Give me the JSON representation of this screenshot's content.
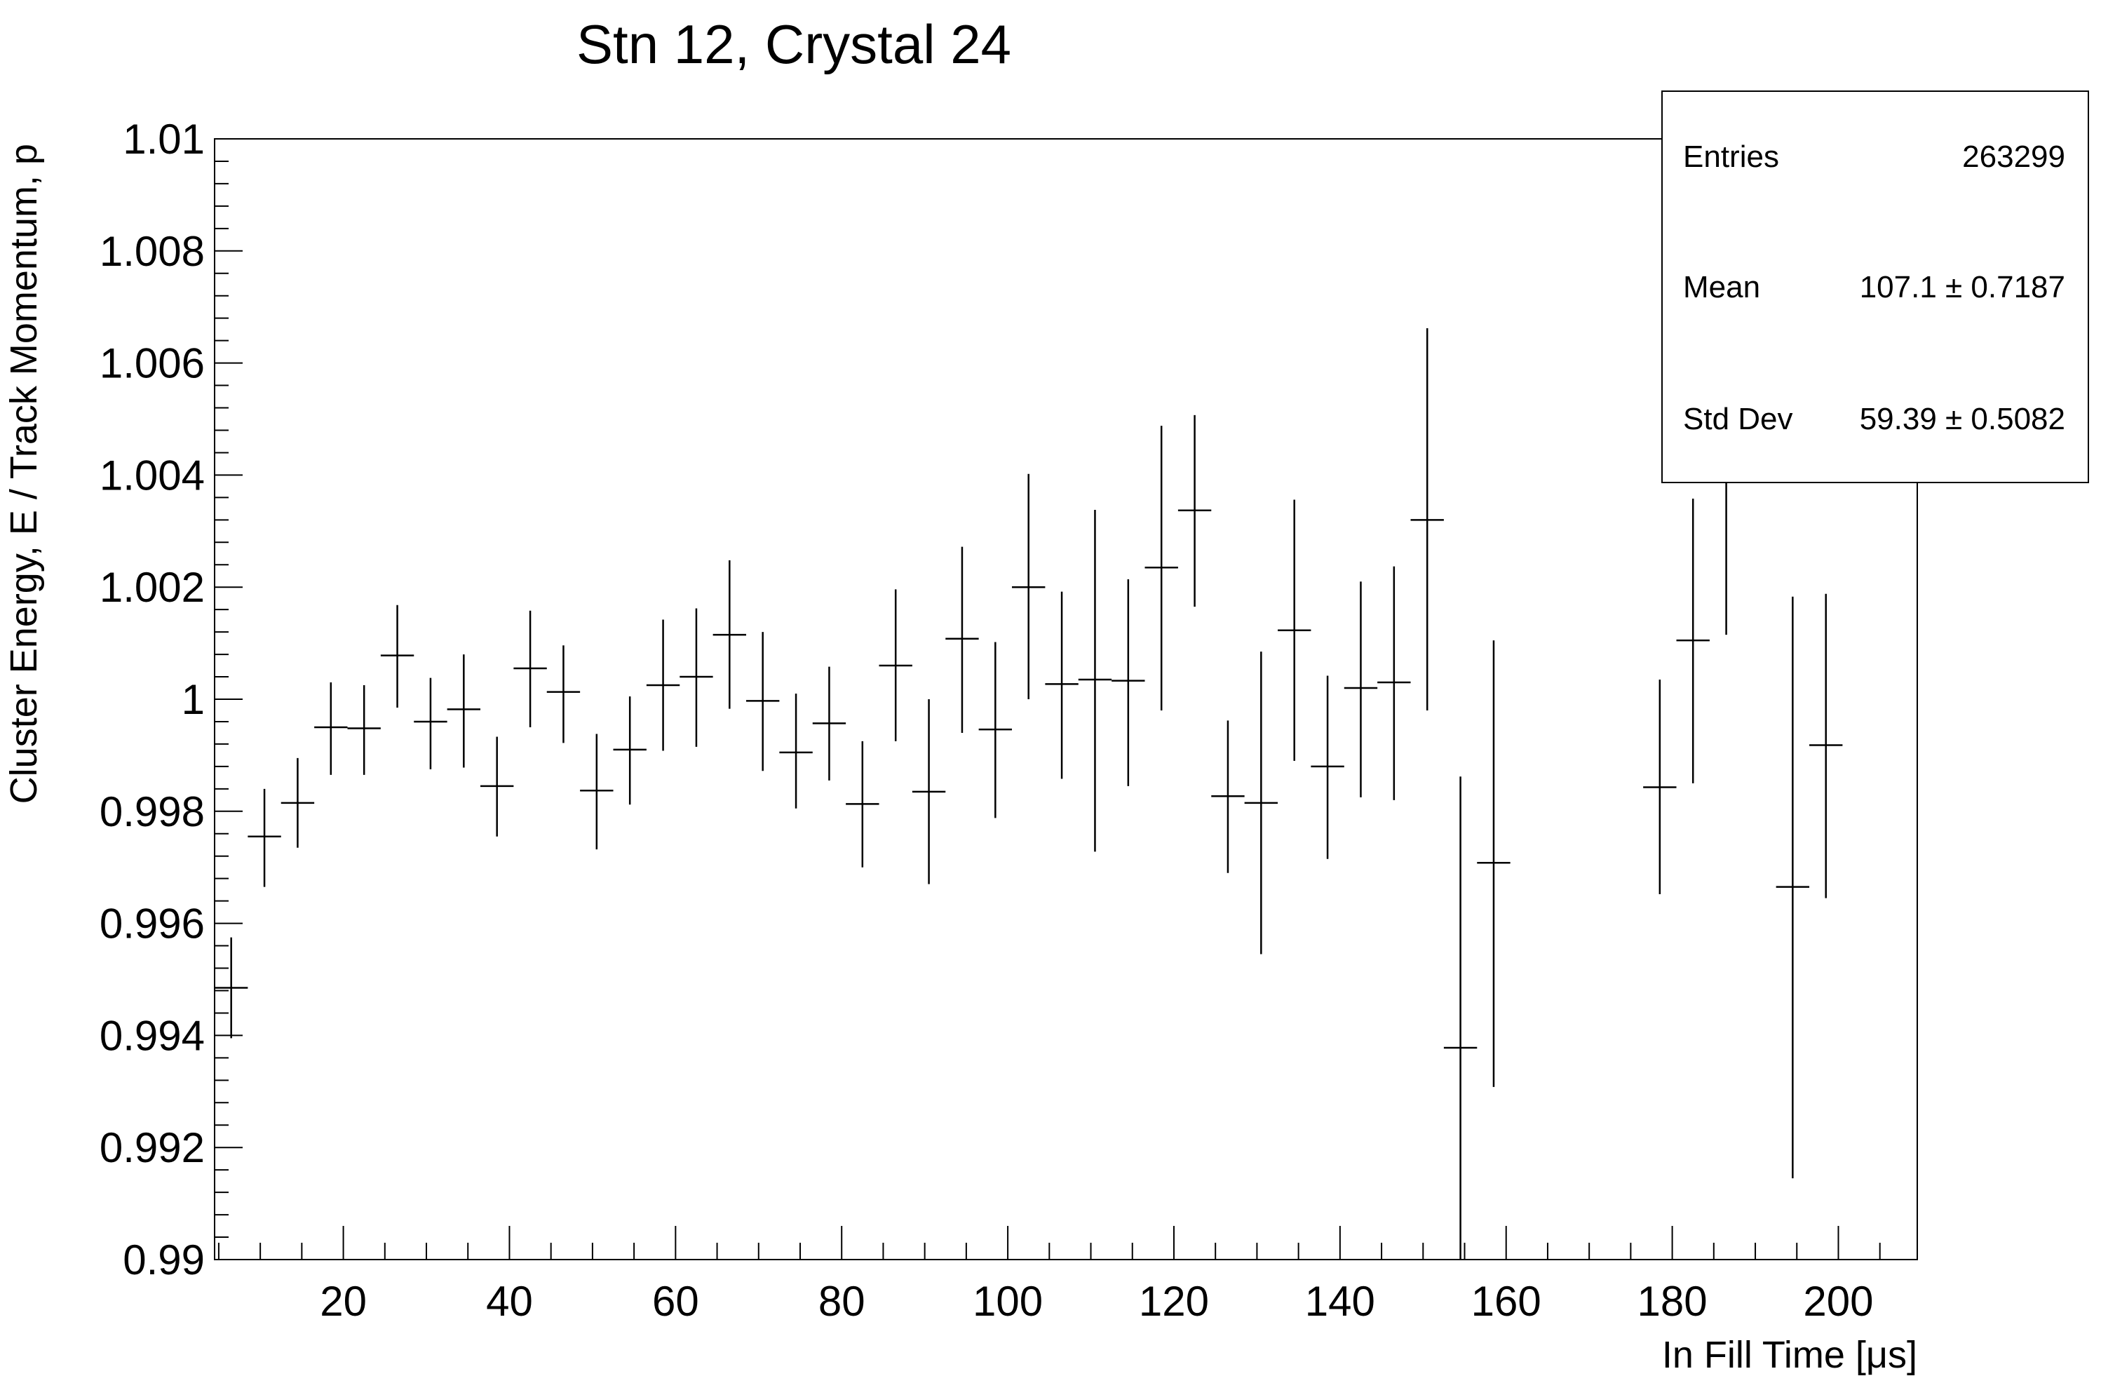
{
  "chart_data": {
    "type": "scatter",
    "title": "Stn 12, Crystal 24",
    "xlabel": "In Fill Time [μs]",
    "ylabel": "Cluster Energy, E / Track Momentum, p",
    "xlim": [
      4.5,
      209.5
    ],
    "ylim": [
      0.99,
      1.01
    ],
    "x_ticks": [
      "20",
      "40",
      "60",
      "80",
      "100",
      "120",
      "140",
      "160",
      "180",
      "200"
    ],
    "y_ticks": [
      "0.99",
      "0.992",
      "0.994",
      "0.996",
      "0.998",
      "1",
      "1.002",
      "1.004",
      "1.006",
      "1.008",
      "1.01"
    ],
    "grid": false,
    "bin_width": 4,
    "points": [
      {
        "x": 6.5,
        "y": 0.99485,
        "ylo": 0.99395,
        "yhi": 0.99575
      },
      {
        "x": 10.5,
        "y": 0.99755,
        "ylo": 0.99665,
        "yhi": 0.9984
      },
      {
        "x": 14.5,
        "y": 0.99815,
        "ylo": 0.99735,
        "yhi": 0.99895
      },
      {
        "x": 18.5,
        "y": 0.9995,
        "ylo": 0.99865,
        "yhi": 1.0003
      },
      {
        "x": 22.5,
        "y": 0.99948,
        "ylo": 0.99865,
        "yhi": 1.00025
      },
      {
        "x": 26.5,
        "y": 1.00078,
        "ylo": 0.99985,
        "yhi": 1.00168
      },
      {
        "x": 30.5,
        "y": 0.9996,
        "ylo": 0.99875,
        "yhi": 1.00038
      },
      {
        "x": 34.5,
        "y": 0.99982,
        "ylo": 0.99878,
        "yhi": 1.0008
      },
      {
        "x": 38.5,
        "y": 0.99845,
        "ylo": 0.99755,
        "yhi": 0.99933
      },
      {
        "x": 42.5,
        "y": 1.00055,
        "ylo": 0.9995,
        "yhi": 1.00158
      },
      {
        "x": 46.5,
        "y": 1.00013,
        "ylo": 0.99922,
        "yhi": 1.00096
      },
      {
        "x": 50.5,
        "y": 0.99837,
        "ylo": 0.99732,
        "yhi": 0.99938
      },
      {
        "x": 54.5,
        "y": 0.9991,
        "ylo": 0.99812,
        "yhi": 1.00005
      },
      {
        "x": 58.5,
        "y": 1.00025,
        "ylo": 0.99908,
        "yhi": 1.00142
      },
      {
        "x": 62.5,
        "y": 1.0004,
        "ylo": 0.99915,
        "yhi": 1.00162
      },
      {
        "x": 66.5,
        "y": 1.00115,
        "ylo": 0.99983,
        "yhi": 1.00248
      },
      {
        "x": 70.5,
        "y": 0.99997,
        "ylo": 0.99872,
        "yhi": 1.0012
      },
      {
        "x": 74.5,
        "y": 0.99905,
        "ylo": 0.99805,
        "yhi": 1.0001
      },
      {
        "x": 78.5,
        "y": 0.99957,
        "ylo": 0.99855,
        "yhi": 1.00058
      },
      {
        "x": 82.5,
        "y": 0.99813,
        "ylo": 0.997,
        "yhi": 0.99925
      },
      {
        "x": 86.5,
        "y": 1.0006,
        "ylo": 0.99925,
        "yhi": 1.00196
      },
      {
        "x": 90.5,
        "y": 0.99835,
        "ylo": 0.9967,
        "yhi": 1.0
      },
      {
        "x": 94.5,
        "y": 1.00108,
        "ylo": 0.9994,
        "yhi": 1.00272
      },
      {
        "x": 98.5,
        "y": 0.99946,
        "ylo": 0.99788,
        "yhi": 1.00102
      },
      {
        "x": 102.5,
        "y": 1.002,
        "ylo": 1.0,
        "yhi": 1.00402
      },
      {
        "x": 106.5,
        "y": 1.00027,
        "ylo": 0.99858,
        "yhi": 1.00192
      },
      {
        "x": 110.5,
        "y": 1.00035,
        "ylo": 0.99728,
        "yhi": 1.00338
      },
      {
        "x": 114.5,
        "y": 1.00033,
        "ylo": 0.99845,
        "yhi": 1.00214
      },
      {
        "x": 118.5,
        "y": 1.00235,
        "ylo": 0.9998,
        "yhi": 1.00488
      },
      {
        "x": 122.5,
        "y": 1.00337,
        "ylo": 1.00165,
        "yhi": 1.00507
      },
      {
        "x": 126.5,
        "y": 0.99827,
        "ylo": 0.9969,
        "yhi": 0.99962
      },
      {
        "x": 130.5,
        "y": 0.99815,
        "ylo": 0.99545,
        "yhi": 1.00085
      },
      {
        "x": 134.5,
        "y": 1.00123,
        "ylo": 0.9989,
        "yhi": 1.00356
      },
      {
        "x": 138.5,
        "y": 0.9988,
        "ylo": 0.99715,
        "yhi": 1.00042
      },
      {
        "x": 142.5,
        "y": 1.0002,
        "ylo": 0.99825,
        "yhi": 1.0021
      },
      {
        "x": 146.5,
        "y": 1.0003,
        "ylo": 0.9982,
        "yhi": 1.00237
      },
      {
        "x": 150.5,
        "y": 1.0032,
        "ylo": 0.9998,
        "yhi": 1.00662
      },
      {
        "x": 154.5,
        "y": 0.99378,
        "ylo": 0.99,
        "yhi": 0.99862
      },
      {
        "x": 158.5,
        "y": 0.99708,
        "ylo": 0.99308,
        "yhi": 1.00105
      },
      {
        "x": 178.5,
        "y": 0.99843,
        "ylo": 0.99652,
        "yhi": 1.00035
      },
      {
        "x": 182.5,
        "y": 1.00105,
        "ylo": 0.9985,
        "yhi": 1.00358
      },
      {
        "x": 186.5,
        "y": 1.0041,
        "ylo": 1.00115,
        "yhi": 1.00705
      },
      {
        "x": 194.5,
        "y": 0.99665,
        "ylo": 0.99145,
        "yhi": 1.00183
      },
      {
        "x": 198.5,
        "y": 0.99918,
        "ylo": 0.99645,
        "yhi": 1.00188
      }
    ],
    "stats": {
      "entries_label": "Entries",
      "entries_value": "263299",
      "mean_label": "Mean",
      "mean_value": "107.1 ± 0.7187",
      "stddev_label": "Std Dev",
      "stddev_value": "59.39 ± 0.5082"
    }
  }
}
